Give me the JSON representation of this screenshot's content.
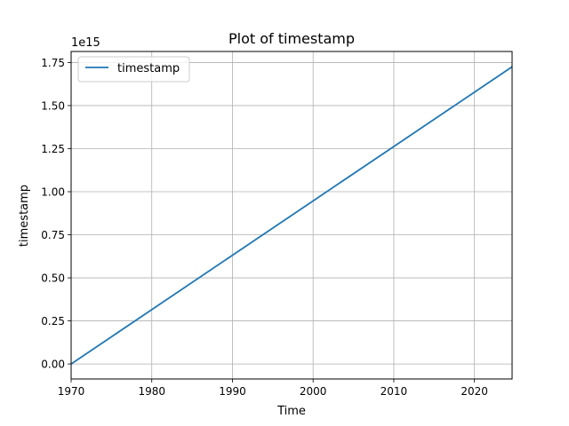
{
  "chart_data": {
    "type": "line",
    "title": "Plot of timestamp",
    "xlabel": "Time",
    "ylabel": "timestamp",
    "offset_label": "1e15",
    "x_axis": {
      "scale": "time",
      "range": [
        "1970-01-01",
        "2024-09-01"
      ],
      "ticks": [
        {
          "value": "1970-01-01",
          "label": "1970"
        },
        {
          "value": "1980-01-01",
          "label": "1980"
        },
        {
          "value": "1990-01-01",
          "label": "1990"
        },
        {
          "value": "2000-01-01",
          "label": "2000"
        },
        {
          "value": "2010-01-01",
          "label": "2010"
        },
        {
          "value": "2020-01-01",
          "label": "2020"
        }
      ]
    },
    "y_axis": {
      "range": [
        -0.087,
        1.814
      ],
      "units_multiplier": 1000000000000000.0,
      "ticks": [
        {
          "value": 0.0,
          "label": "0.00"
        },
        {
          "value": 0.25,
          "label": "0.25"
        },
        {
          "value": 0.5,
          "label": "0.50"
        },
        {
          "value": 0.75,
          "label": "0.75"
        },
        {
          "value": 1.0,
          "label": "1.00"
        },
        {
          "value": 1.25,
          "label": "1.25"
        },
        {
          "value": 1.5,
          "label": "1.50"
        },
        {
          "value": 1.75,
          "label": "1.75"
        }
      ]
    },
    "grid": true,
    "legend": {
      "position": "top-left"
    },
    "series": [
      {
        "name": "timestamp",
        "color": "#1f77b4",
        "points": [
          {
            "x": "1970-01-01",
            "y": 0.0
          },
          {
            "x": "1980-01-01",
            "y": 0.3155
          },
          {
            "x": "1990-01-01",
            "y": 0.6312
          },
          {
            "x": "2000-01-01",
            "y": 0.9467
          },
          {
            "x": "2010-01-01",
            "y": 1.2623
          },
          {
            "x": "2020-01-01",
            "y": 1.5778
          },
          {
            "x": "2024-09-01",
            "y": 1.7252
          }
        ]
      }
    ]
  }
}
